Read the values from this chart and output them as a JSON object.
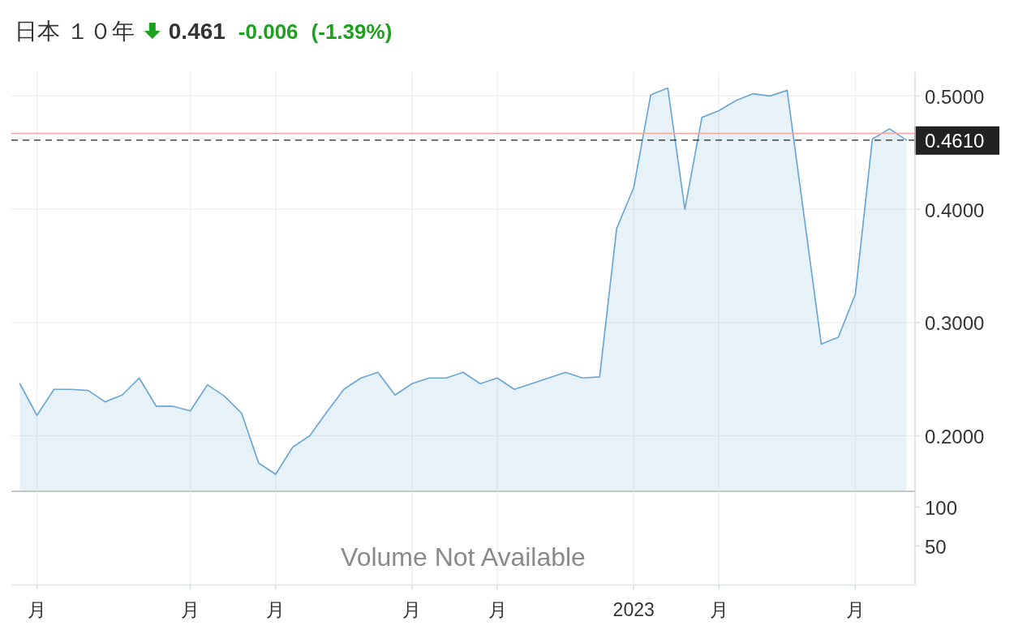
{
  "chart_data": [
    {
      "type": "area",
      "title": "日本 １０年",
      "annotations": [
        "0.461",
        "-0.006",
        "(-1.39%)"
      ],
      "categories": [
        null,
        null,
        null,
        null,
        null,
        null,
        null,
        null,
        null,
        null,
        null,
        null,
        null,
        null,
        null,
        null,
        null,
        null,
        null,
        null,
        null,
        null,
        null,
        null,
        null,
        null,
        null,
        null,
        null,
        null,
        null,
        null,
        null,
        null,
        null,
        null,
        null,
        null,
        null,
        null,
        null,
        null,
        null,
        null,
        null,
        null,
        null,
        null,
        null,
        null,
        null,
        null,
        null
      ],
      "values": [
        0.246,
        0.218,
        0.241,
        0.241,
        0.24,
        0.23,
        0.236,
        0.251,
        0.226,
        0.226,
        0.222,
        0.245,
        0.235,
        0.22,
        0.176,
        0.166,
        0.19,
        0.2,
        0.221,
        0.241,
        0.251,
        0.256,
        0.236,
        0.246,
        0.251,
        0.251,
        0.256,
        0.246,
        0.251,
        0.241,
        0.246,
        0.251,
        0.256,
        0.251,
        0.252,
        0.383,
        0.419,
        0.501,
        0.507,
        0.4,
        0.481,
        0.487,
        0.496,
        0.502,
        0.5,
        0.505,
        0.393,
        0.281,
        0.287,
        0.325,
        0.462,
        0.471,
        0.461
      ],
      "color": "#6ba7d6",
      "ylim": [
        0.151,
        0.521
      ],
      "yticks": [
        {
          "value": 0.2,
          "label": "0.2000"
        },
        {
          "value": 0.3,
          "label": "0.3000"
        },
        {
          "value": 0.4,
          "label": "0.4000"
        },
        {
          "value": 0.5,
          "label": "0.5000"
        }
      ],
      "ref_lines": [
        {
          "axis": "y",
          "value": 0.467,
          "color": "#f4a3a3",
          "line_style": "solid"
        },
        {
          "axis": "y",
          "value": 0.461,
          "label": "0.4610",
          "color": "#222222",
          "line_style": "dashed"
        }
      ],
      "grid": true,
      "line_style": "solid",
      "tick_labels": "y"
    },
    {
      "type": "bar",
      "annotations": [
        "Volume Not Available"
      ],
      "categories": [
        null,
        "月",
        null,
        null,
        null,
        null,
        null,
        null,
        null,
        null,
        "月",
        null,
        null,
        null,
        null,
        "月",
        null,
        null,
        null,
        null,
        null,
        null,
        null,
        "月",
        null,
        null,
        null,
        null,
        "月",
        null,
        null,
        null,
        null,
        null,
        null,
        null,
        "2023",
        null,
        null,
        null,
        null,
        "月",
        null,
        null,
        null,
        null,
        null,
        null,
        null,
        "月",
        null,
        null,
        null
      ],
      "values": [
        null,
        null,
        null,
        null,
        null,
        null,
        null,
        null,
        null,
        null,
        null,
        null,
        null,
        null,
        null,
        null,
        null,
        null,
        null,
        null,
        null,
        null,
        null,
        null,
        null,
        null,
        null,
        null,
        null,
        null,
        null,
        null,
        null,
        null,
        null,
        null,
        null,
        null,
        null,
        null,
        null,
        null,
        null,
        null,
        null,
        null,
        null,
        null,
        null,
        null,
        null,
        null,
        null
      ],
      "ylim": [
        0,
        120
      ],
      "yticks": [
        50,
        100
      ],
      "grid": "x"
    }
  ]
}
